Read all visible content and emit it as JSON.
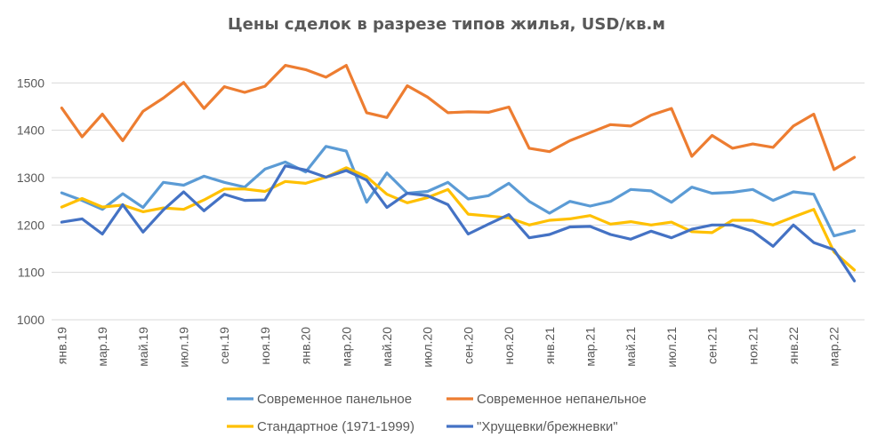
{
  "chart_data": {
    "type": "line",
    "title": "Цены сделок в разрезе типов жилья, USD/кв.м",
    "xlabel": "",
    "ylabel": "",
    "ylim": [
      1000,
      1600
    ],
    "yticks": [
      1000,
      1100,
      1200,
      1300,
      1400,
      1500
    ],
    "grid": true,
    "legend_position": "bottom",
    "x": [
      "янв.19",
      "фев.19",
      "мар.19",
      "апр.19",
      "май.19",
      "июн.19",
      "июл.19",
      "авг.19",
      "сен.19",
      "окт.19",
      "ноя.19",
      "дек.19",
      "янв.20",
      "фев.20",
      "мар.20",
      "апр.20",
      "май.20",
      "июн.20",
      "июл.20",
      "авг.20",
      "сен.20",
      "окт.20",
      "ноя.20",
      "дек.20",
      "янв.21",
      "фев.21",
      "мар.21",
      "апр.21",
      "май.21",
      "июн.21",
      "июл.21",
      "авг.21",
      "сен.21",
      "окт.21",
      "ноя.21",
      "дек.21",
      "янв.22",
      "фев.22",
      "мар.22",
      "апр.22"
    ],
    "xtick_labels": [
      "янв.19",
      "мар.19",
      "май.19",
      "июл.19",
      "сен.19",
      "ноя.19",
      "янв.20",
      "мар.20",
      "май.20",
      "июл.20",
      "сен.20",
      "ноя.20",
      "янв.21",
      "мар.21",
      "май.21",
      "июл.21",
      "сен.21",
      "ноя.21",
      "янв.22",
      "мар.22"
    ],
    "series": [
      {
        "name": "Современное панельное",
        "color": "#5b9bd5",
        "values": [
          1268,
          1252,
          1233,
          1266,
          1237,
          1290,
          1284,
          1303,
          1290,
          1280,
          1318,
          1333,
          1312,
          1366,
          1356,
          1248,
          1310,
          1267,
          1271,
          1290,
          1255,
          1262,
          1288,
          1250,
          1225,
          1250,
          1240,
          1250,
          1275,
          1272,
          1248,
          1280,
          1267,
          1269,
          1275,
          1252,
          1270,
          1265,
          1177,
          1188
        ]
      },
      {
        "name": "Современное непанельное",
        "color": "#ed7d31",
        "values": [
          1447,
          1386,
          1434,
          1378,
          1440,
          1468,
          1501,
          1446,
          1492,
          1480,
          1493,
          1537,
          1528,
          1512,
          1537,
          1437,
          1427,
          1494,
          1470,
          1437,
          1439,
          1438,
          1449,
          1362,
          1355,
          1378,
          1395,
          1412,
          1409,
          1432,
          1446,
          1345,
          1389,
          1362,
          1371,
          1364,
          1409,
          1434,
          1317,
          1343
        ]
      },
      {
        "name": "Стандартное (1971-1999)",
        "color": "#ffc000",
        "values": [
          1238,
          1256,
          1238,
          1242,
          1228,
          1236,
          1233,
          1253,
          1276,
          1276,
          1271,
          1292,
          1288,
          1301,
          1321,
          1302,
          1265,
          1247,
          1258,
          1275,
          1223,
          1219,
          1215,
          1200,
          1210,
          1213,
          1220,
          1202,
          1207,
          1200,
          1206,
          1186,
          1184,
          1210,
          1210,
          1200,
          1217,
          1233,
          1143,
          1105
        ]
      },
      {
        "name": "\"Хрущевки/брежневки\"",
        "color": "#4472c4",
        "values": [
          1206,
          1213,
          1181,
          1243,
          1185,
          1232,
          1270,
          1230,
          1265,
          1252,
          1253,
          1325,
          1316,
          1301,
          1315,
          1295,
          1237,
          1267,
          1262,
          1243,
          1181,
          1202,
          1222,
          1173,
          1180,
          1196,
          1197,
          1180,
          1170,
          1187,
          1173,
          1191,
          1200,
          1200,
          1187,
          1155,
          1200,
          1163,
          1148,
          1082
        ]
      }
    ]
  }
}
